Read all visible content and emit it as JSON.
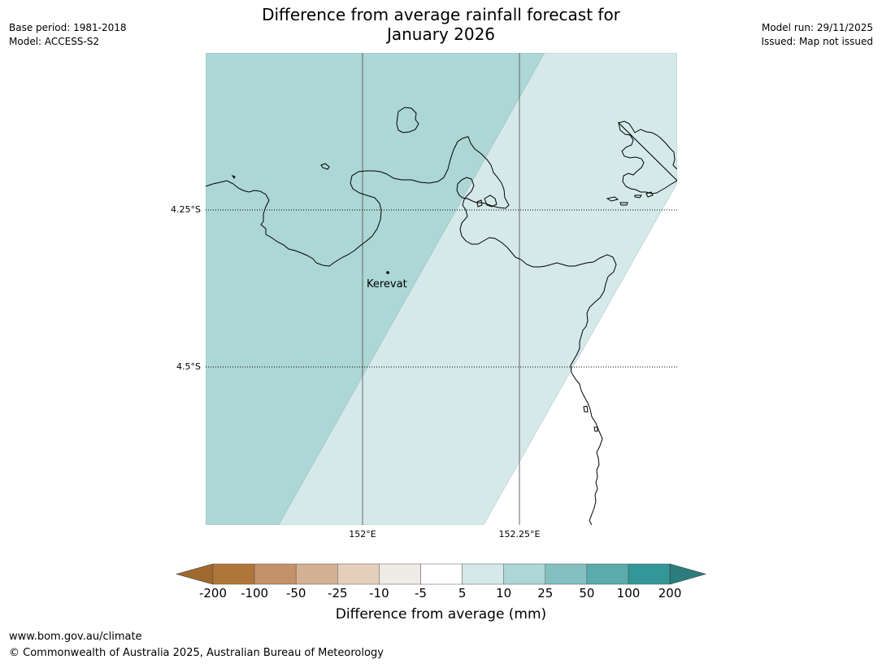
{
  "header": {
    "title_line1": "Difference from average rainfall forecast for",
    "title_line2": "January 2026",
    "base_period": "Base period: 1981-2018",
    "model": "Model: ACCESS-S2",
    "model_run": "Model run: 29/11/2025",
    "issued": "Issued: Map not issued"
  },
  "map": {
    "lat_labels": [
      "4.25°S",
      "4.5°S"
    ],
    "lon_labels": [
      "152°E",
      "152.25°E"
    ],
    "place": "Kerevat",
    "region_colors": {
      "band_10_25": "#add6d6",
      "band_5_10": "#d5e9e9"
    },
    "coastline_color": "#000000"
  },
  "colorbar": {
    "title": "Difference from average (mm)",
    "ticks": [
      "-200",
      "-100",
      "-50",
      "-25",
      "-10",
      "-5",
      "5",
      "10",
      "25",
      "50",
      "100",
      "200"
    ],
    "colors": [
      "#a0692e",
      "#b07538",
      "#c3926a",
      "#d4b192",
      "#e5cfbb",
      "#efebe7",
      "#ffffff",
      "#d5e9e9",
      "#add6d6",
      "#84c0bf",
      "#5aabab",
      "#329796",
      "#2b7e7d"
    ]
  },
  "footer": {
    "url": "www.bom.gov.au/climate",
    "copyright": "© Commonwealth of Australia 2025, Australian Bureau of Meteorology"
  }
}
